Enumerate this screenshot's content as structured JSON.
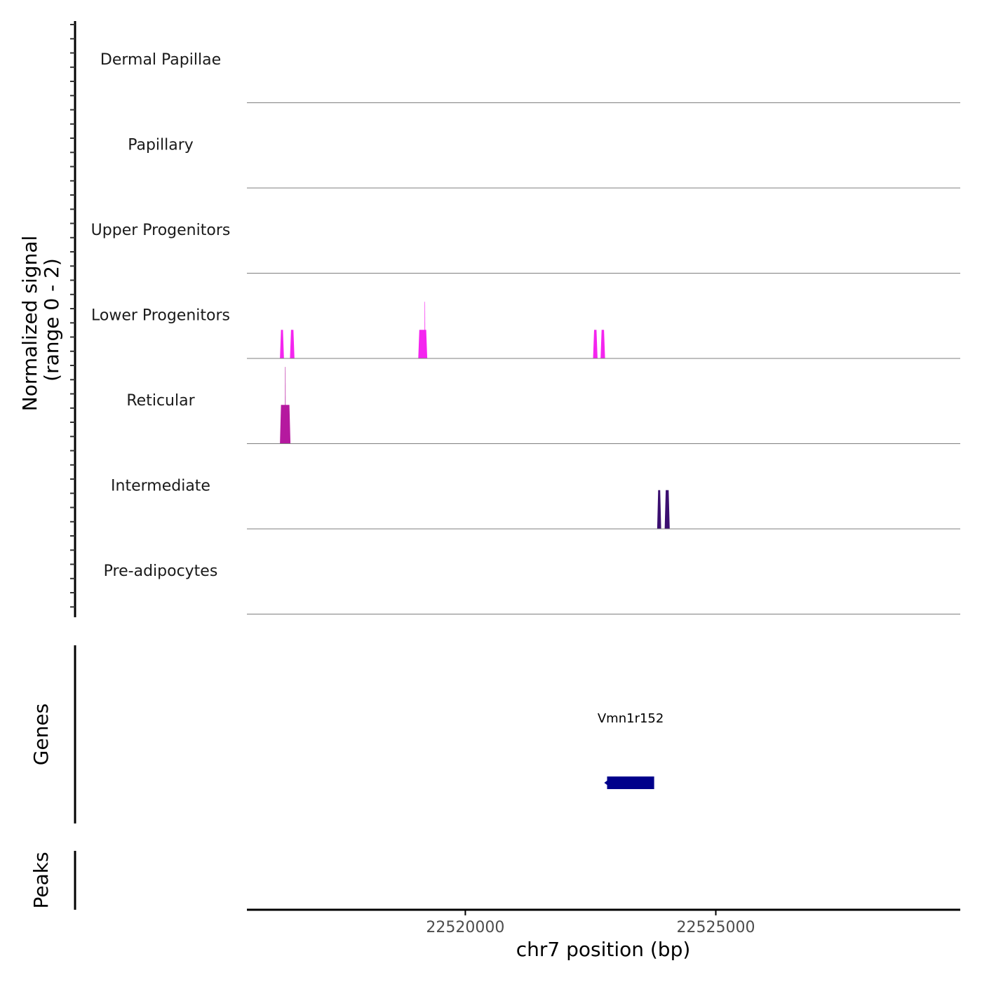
{
  "chart_data": {
    "type": "coverage",
    "region": {
      "chrom": "chr7",
      "start": 22515640,
      "end": 22529880
    },
    "ylabel_line1": "Normalized signal",
    "ylabel_line2": "(range 0 - 2)",
    "ymax": 2,
    "xlabel": "chr7 position (bp)",
    "xticks": [
      {
        "value": 22520000,
        "label": "22520000"
      },
      {
        "value": 22525000,
        "label": "22525000"
      }
    ],
    "tracks": [
      {
        "name": "Dermal Papillae",
        "color": "#fcfdbf",
        "peaks": []
      },
      {
        "name": "Papillary",
        "color": "#fed395",
        "peaks": []
      },
      {
        "name": "Upper Progenitors",
        "color": "#fb8861",
        "peaks": []
      },
      {
        "name": "Lower Progenitors",
        "color": "#f425ef",
        "peaks": [
          {
            "start": 22516300,
            "end": 22516380,
            "value": 0.67
          },
          {
            "start": 22516500,
            "end": 22516590,
            "value": 0.67
          },
          {
            "start": 22519060,
            "end": 22519240,
            "value": 0.67
          },
          {
            "start": 22519185,
            "end": 22519200,
            "value": 1.33
          },
          {
            "start": 22522550,
            "end": 22522640,
            "value": 0.67
          },
          {
            "start": 22522700,
            "end": 22522790,
            "value": 0.67
          }
        ]
      },
      {
        "name": "Reticular",
        "color": "#b5199f",
        "peaks": [
          {
            "start": 22516300,
            "end": 22516510,
            "value": 0.91
          },
          {
            "start": 22516400,
            "end": 22516415,
            "value": 1.8
          }
        ]
      },
      {
        "name": "Intermediate",
        "color": "#3b0f70",
        "peaks": [
          {
            "start": 22523830,
            "end": 22523910,
            "value": 0.91
          },
          {
            "start": 22523980,
            "end": 22524080,
            "value": 0.91
          }
        ]
      },
      {
        "name": "Pre-adipocytes",
        "color": "#000004",
        "peaks": []
      }
    ],
    "genes_label": "Genes",
    "genes": [
      {
        "name": "Vmn1r152",
        "start": 22522830,
        "end": 22523770,
        "strand": "-",
        "color": "#00008b"
      }
    ],
    "peaks_label": "Peaks",
    "peak_regions": []
  }
}
